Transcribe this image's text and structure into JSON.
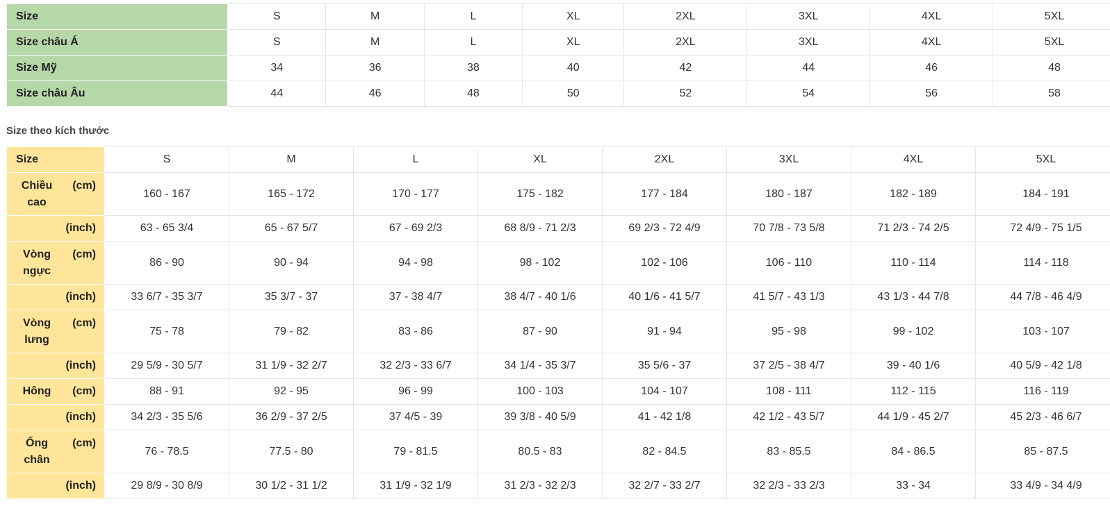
{
  "conversion_table": {
    "sizes": [
      "S",
      "M",
      "L",
      "XL",
      "2XL",
      "3XL",
      "4XL",
      "5XL"
    ],
    "rows": [
      {
        "label": "Size",
        "values": [
          "S",
          "M",
          "L",
          "XL",
          "2XL",
          "3XL",
          "4XL",
          "5XL"
        ]
      },
      {
        "label": "Size châu Á",
        "values": [
          "S",
          "M",
          "L",
          "XL",
          "2XL",
          "3XL",
          "4XL",
          "5XL"
        ]
      },
      {
        "label": "Size Mỹ",
        "values": [
          "34",
          "36",
          "38",
          "40",
          "42",
          "44",
          "46",
          "48"
        ]
      },
      {
        "label": "Size châu Âu",
        "values": [
          "44",
          "46",
          "48",
          "50",
          "52",
          "54",
          "56",
          "58"
        ]
      }
    ],
    "header_color": "#b6d7a8"
  },
  "measurement_heading": "Size theo kích thước",
  "measurement_table": {
    "header_color": "#ffe599",
    "size_row": {
      "label": "Size",
      "values": [
        "S",
        "M",
        "L",
        "XL",
        "2XL",
        "3XL",
        "4XL",
        "5XL"
      ]
    },
    "groups": [
      {
        "label": "Chiều cao",
        "cm_unit": "(cm)",
        "inch_unit": "(inch)",
        "cm": [
          "160 - 167",
          "165 - 172",
          "170 - 177",
          "175 - 182",
          "177 - 184",
          "180 - 187",
          "182 - 189",
          "184 - 191"
        ],
        "inch": [
          "63 - 65 3/4",
          "65 - 67 5/7",
          "67 - 69 2/3",
          "68 8/9 - 71 2/3",
          "69 2/3 - 72 4/9",
          "70 7/8 - 73 5/8",
          "71 2/3 - 74 2/5",
          "72 4/9 - 75 1/5"
        ]
      },
      {
        "label": "Vòng ngực",
        "cm_unit": "(cm)",
        "inch_unit": "(inch)",
        "cm": [
          "86 - 90",
          "90 - 94",
          "94 - 98",
          "98 - 102",
          "102 - 106",
          "106 - 110",
          "110 - 114",
          "114 - 118"
        ],
        "inch": [
          "33 6/7 - 35 3/7",
          "35 3/7 - 37",
          "37 - 38 4/7",
          "38 4/7 - 40 1/6",
          "40 1/6 - 41 5/7",
          "41 5/7 - 43 1/3",
          "43 1/3 - 44 7/8",
          "44 7/8 - 46 4/9"
        ]
      },
      {
        "label": "Vòng lưng",
        "cm_unit": "(cm)",
        "inch_unit": "(inch)",
        "cm": [
          "75 - 78",
          "79 - 82",
          "83 - 86",
          "87 - 90",
          "91 - 94",
          "95 - 98",
          "99 - 102",
          "103 - 107"
        ],
        "inch": [
          "29 5/9 - 30 5/7",
          "31 1/9 - 32 2/7",
          "32 2/3 - 33 6/7",
          "34 1/4 - 35 3/7",
          "35 5/6 - 37",
          "37 2/5 - 38 4/7",
          "39 - 40 1/6",
          "40 5/9 - 42 1/8"
        ]
      },
      {
        "label": "Hông",
        "cm_unit": "(cm)",
        "inch_unit": "(inch)",
        "cm": [
          "88 - 91",
          "92 - 95",
          "96 - 99",
          "100 - 103",
          "104 - 107",
          "108 - 111",
          "112 - 115",
          "116 - 119"
        ],
        "inch": [
          "34 2/3 - 35 5/6",
          "36 2/9 - 37 2/5",
          "37 4/5 - 39",
          "39 3/8 - 40 5/9",
          "41 - 42 1/8",
          "42 1/2 - 43 5/7",
          "44 1/9 - 45 2/7",
          "45 2/3 - 46 6/7"
        ]
      },
      {
        "label": "Ống chân",
        "cm_unit": "(cm)",
        "inch_unit": "(inch)",
        "cm": [
          "76 - 78.5",
          "77.5 - 80",
          "79 - 81.5",
          "80.5 - 83",
          "82 - 84.5",
          "83 - 85.5",
          "84 - 86.5",
          "85 - 87.5"
        ],
        "inch": [
          "29 8/9 - 30 8/9",
          "30 1/2 - 31 1/2",
          "31 1/9 - 32 1/9",
          "31 2/3 - 32 2/3",
          "32 2/7 - 33 2/7",
          "32 2/3 - 33 2/3",
          "33 - 34",
          "33 4/9 - 34 4/9"
        ]
      }
    ]
  }
}
